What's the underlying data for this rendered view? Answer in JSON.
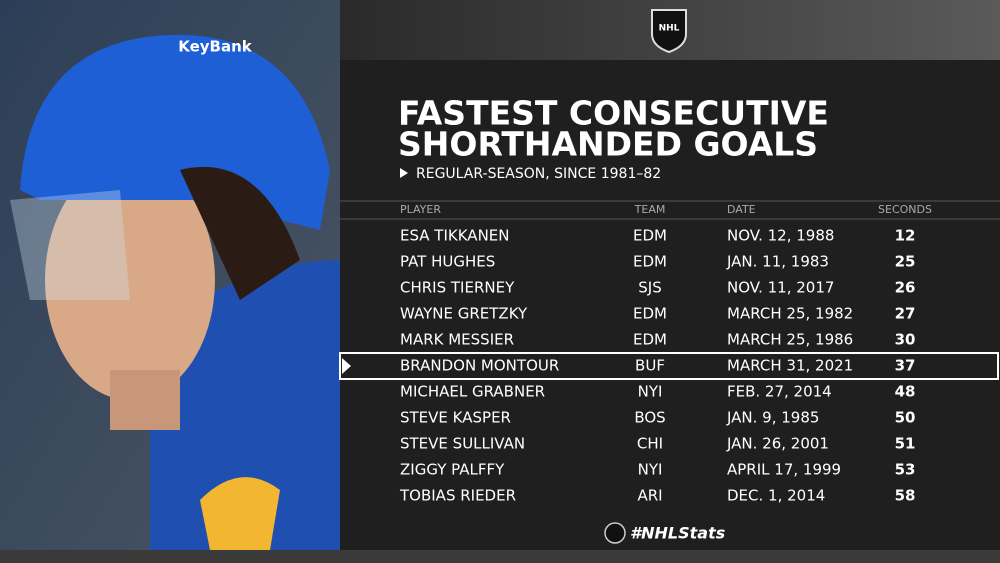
{
  "logo": "NHL",
  "title": [
    "FASTEST CONSECUTIVE",
    "SHORTHANDED GOALS"
  ],
  "subtitle": "REGULAR-SEASON, SINCE 1981–82",
  "photo_text": "KeyBank",
  "table": {
    "headers": [
      "PLAYER",
      "TEAM",
      "DATE",
      "SECONDS"
    ],
    "rows": [
      [
        "ESA TIKKANEN",
        "EDM",
        "NOV. 12, 1988",
        12
      ],
      [
        "PAT HUGHES",
        "EDM",
        "JAN. 11, 1983",
        25
      ],
      [
        "CHRIS TIERNEY",
        "SJS",
        "NOV. 11, 2017",
        26
      ],
      [
        "WAYNE GRETZKY",
        "EDM",
        "MARCH 25, 1982",
        27
      ],
      [
        "MARK MESSIER",
        "EDM",
        "MARCH 25, 1986",
        30
      ],
      [
        "BRANDON MONTOUR",
        "BUF",
        "MARCH 31, 2021",
        37
      ],
      [
        "MICHAEL GRABNER",
        "NYI",
        "FEB. 27, 2014",
        48
      ],
      [
        "STEVE KASPER",
        "BOS",
        "JAN. 9, 1985",
        50
      ],
      [
        "STEVE SULLIVAN",
        "CHI",
        "JAN. 26, 2001",
        51
      ],
      [
        "ZIGGY PALFFY",
        "NYI",
        "APRIL 17, 1999",
        53
      ],
      [
        "TOBIAS RIEDER",
        "ARI",
        "DEC. 1, 2014",
        58
      ]
    ]
  },
  "footer": "#NHLStats"
}
